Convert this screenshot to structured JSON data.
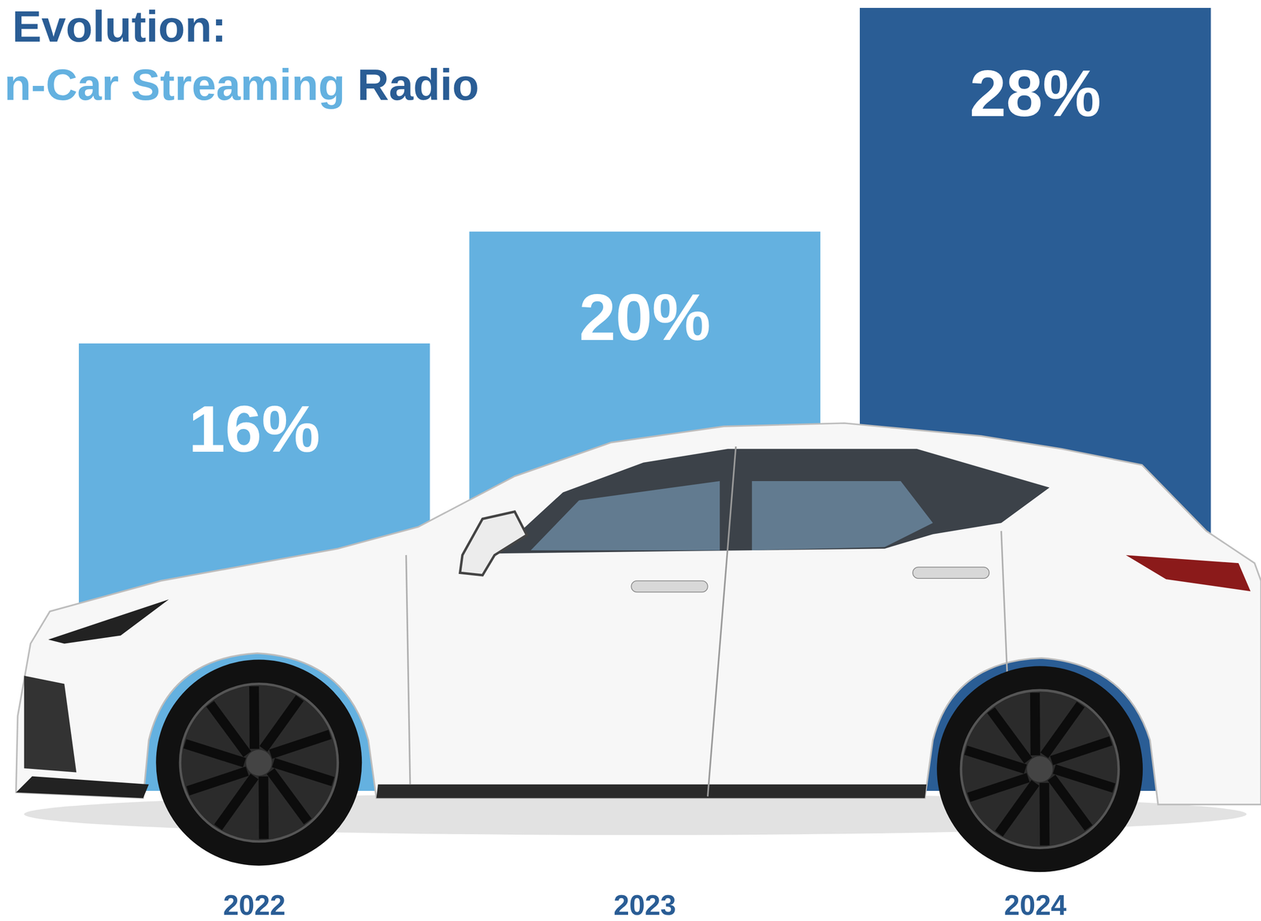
{
  "chart_data": {
    "type": "bar",
    "title": "Evolution:",
    "subtitle": "n-Car Streaming Radio",
    "categories": [
      "2022",
      "2023",
      "2024"
    ],
    "values": [
      16,
      20,
      28
    ],
    "value_labels": [
      "16%",
      "20%",
      "28%"
    ],
    "colors": [
      "#64b1e0",
      "#64b1e0",
      "#2a5d95"
    ],
    "ylim": [
      0,
      28
    ],
    "data_labels": true,
    "tick_labels": "x",
    "grid": false
  }
}
